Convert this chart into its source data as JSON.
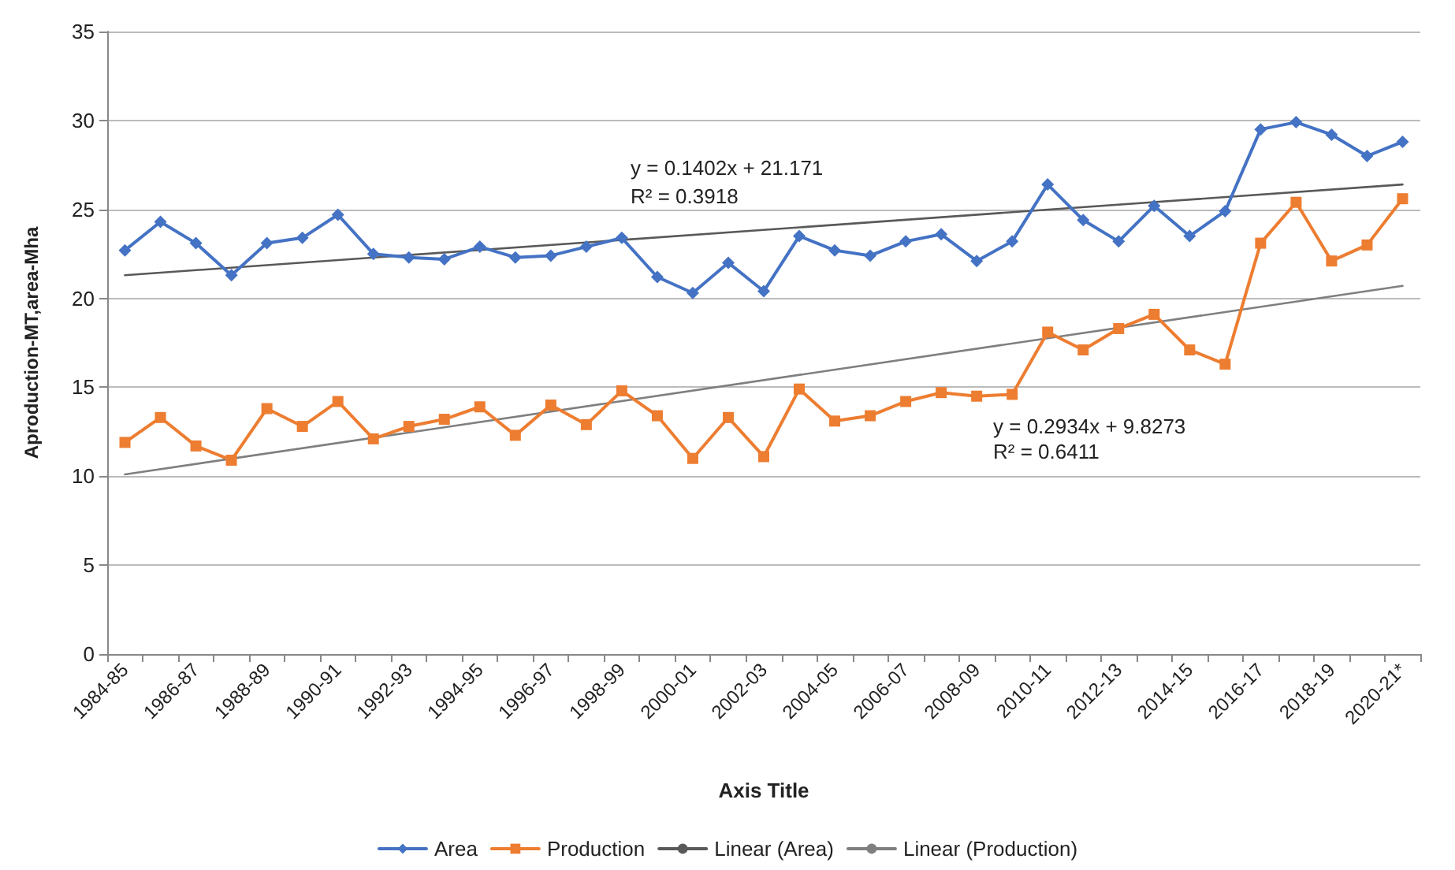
{
  "chart_data": {
    "type": "line",
    "xlabel": "Axis Title",
    "ylabel": "Aproduction-MT,area-Mha",
    "categories": [
      "1984-85",
      null,
      "1986-87",
      null,
      "1988-89",
      null,
      "1990-91",
      null,
      "1992-93",
      null,
      "1994-95",
      null,
      "1996-97",
      null,
      "1998-99",
      null,
      "2000-01",
      null,
      "2002-03",
      null,
      "2004-05",
      null,
      "2006-07",
      null,
      "2008-09",
      null,
      "2010-11",
      null,
      "2012-13",
      null,
      "2014-15",
      null,
      "2016-17",
      null,
      "2018-19",
      null,
      "2020-21*"
    ],
    "series": [
      {
        "name": "Area",
        "color": "#4472c4",
        "marker": "diamond",
        "values": [
          22.7,
          24.3,
          23.1,
          21.3,
          23.1,
          23.4,
          24.7,
          22.5,
          22.3,
          22.2,
          22.9,
          22.3,
          22.4,
          22.9,
          23.4,
          21.2,
          20.3,
          22.0,
          20.4,
          23.5,
          22.7,
          22.4,
          23.2,
          23.6,
          22.1,
          23.2,
          26.4,
          24.4,
          23.2,
          25.2,
          23.5,
          24.9,
          29.5,
          29.9,
          29.2,
          28.0,
          28.8
        ]
      },
      {
        "name": "Production",
        "color": "#ed7d31",
        "marker": "square",
        "values": [
          11.9,
          13.3,
          11.7,
          10.9,
          13.8,
          12.8,
          14.2,
          12.1,
          12.8,
          13.2,
          13.9,
          12.3,
          14.0,
          12.9,
          14.8,
          13.4,
          11.0,
          13.3,
          11.1,
          14.9,
          13.1,
          13.4,
          14.2,
          14.7,
          14.5,
          14.6,
          18.1,
          17.1,
          18.3,
          19.1,
          17.1,
          16.3,
          23.1,
          25.4,
          22.1,
          23.0,
          25.6
        ]
      },
      {
        "name": "Linear (Area)",
        "color": "#595959",
        "marker": "none",
        "x": [
          "1984-85",
          "2020-21*"
        ],
        "values": [
          21.3,
          26.4
        ]
      },
      {
        "name": "Linear (Production)",
        "color": "#7f7f7f",
        "marker": "none",
        "x": [
          "1984-85",
          "2020-21*"
        ],
        "values": [
          10.1,
          20.7
        ]
      }
    ],
    "annotations": [
      "y = 0.1402x + 21.171",
      "R² = 0.3918",
      "y = 0.2934x + 9.8273",
      "R² = 0.6411"
    ],
    "ylim": [
      0,
      35
    ],
    "yticks": [
      0,
      5,
      10,
      15,
      20,
      25,
      30,
      35
    ],
    "grid": "y",
    "legend": "bottom",
    "line_style": "solid"
  }
}
